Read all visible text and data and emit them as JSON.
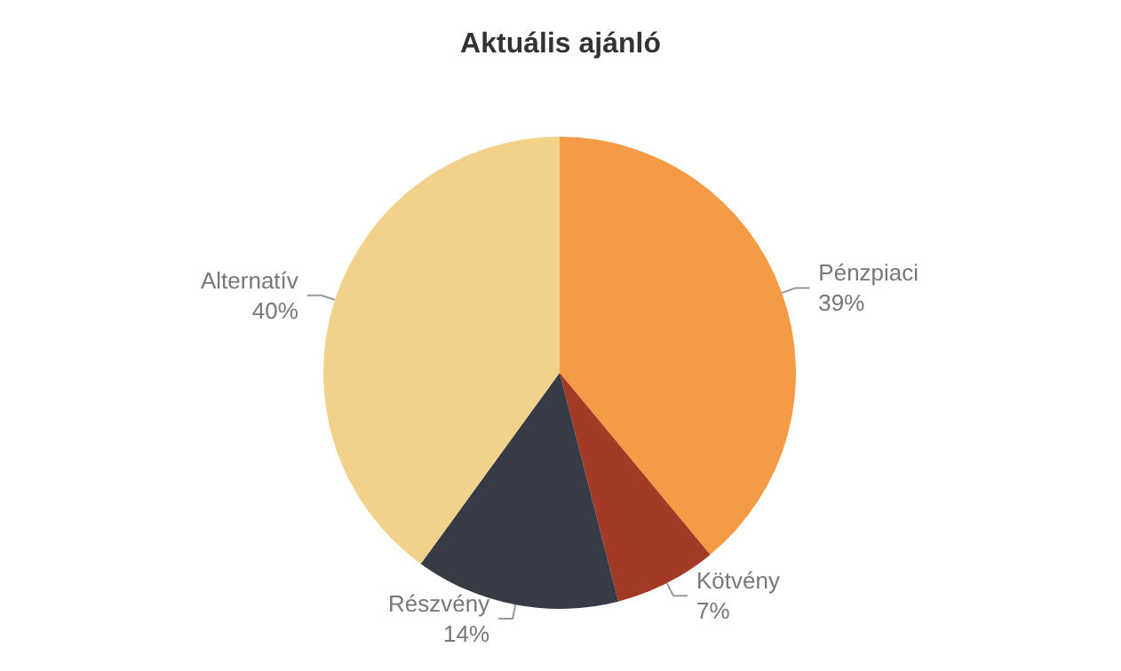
{
  "chart_data": {
    "type": "pie",
    "title": "Aktuális ajánló",
    "categories": [
      "Pénzpiaci",
      "Kötvény",
      "Részvény",
      "Alternatív"
    ],
    "values": [
      39,
      7,
      14,
      40
    ],
    "value_labels": [
      "39%",
      "7%",
      "14%",
      "40%"
    ],
    "colors": [
      "#f59a45",
      "#a33a26",
      "#373b45",
      "#f2d18a"
    ],
    "legend": false
  }
}
